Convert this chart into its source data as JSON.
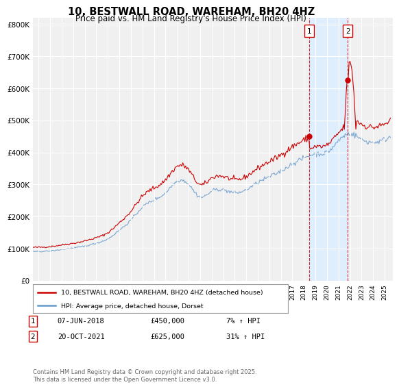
{
  "title": "10, BESTWALL ROAD, WAREHAM, BH20 4HZ",
  "subtitle": "Price paid vs. HM Land Registry's House Price Index (HPI)",
  "ylabel_ticks": [
    "£0",
    "£100K",
    "£200K",
    "£300K",
    "£400K",
    "£500K",
    "£600K",
    "£700K",
    "£800K"
  ],
  "ytick_values": [
    0,
    100000,
    200000,
    300000,
    400000,
    500000,
    600000,
    700000,
    800000
  ],
  "ylim": [
    0,
    820000
  ],
  "xlim_start": 1994.5,
  "xlim_end": 2025.7,
  "red_color": "#cc0000",
  "blue_color": "#6699cc",
  "shade_color": "#ddeeff",
  "background_plot": "#f0f0f0",
  "background_fig": "#ffffff",
  "grid_color": "#ffffff",
  "ann1_x": 2018.44,
  "ann1_y": 450000,
  "ann1_date": "07-JUN-2018",
  "ann1_price": "£450,000",
  "ann1_hpi": "7% ↑ HPI",
  "ann2_x": 2021.8,
  "ann2_y": 625000,
  "ann2_date": "20-OCT-2021",
  "ann2_price": "£625,000",
  "ann2_hpi": "31% ↑ HPI",
  "legend_label1": "10, BESTWALL ROAD, WAREHAM, BH20 4HZ (detached house)",
  "legend_label2": "HPI: Average price, detached house, Dorset",
  "footer": "Contains HM Land Registry data © Crown copyright and database right 2025.\nThis data is licensed under the Open Government Licence v3.0."
}
